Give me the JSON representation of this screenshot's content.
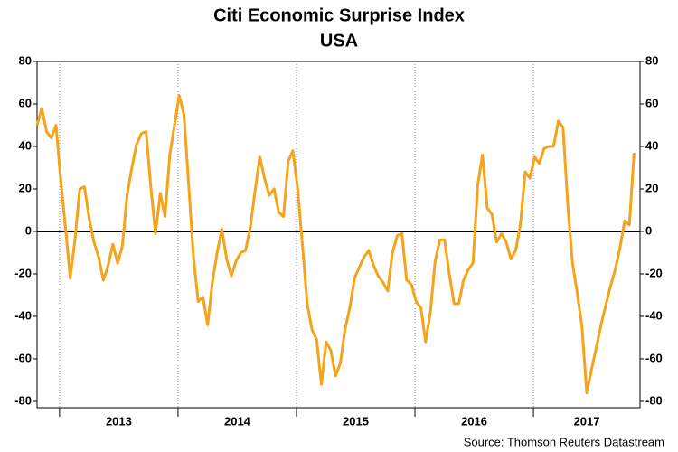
{
  "chart_data": {
    "type": "line",
    "title": "Citi Economic Surprise Index",
    "subtitle": "USA",
    "source": "Source: Thomson Reuters Datastream",
    "x": [
      2012.81,
      2012.85,
      2012.89,
      2012.93,
      2012.97,
      2013.01,
      2013.05,
      2013.09,
      2013.13,
      2013.17,
      2013.21,
      2013.25,
      2013.29,
      2013.33,
      2013.37,
      2013.41,
      2013.45,
      2013.49,
      2013.53,
      2013.57,
      2013.61,
      2013.65,
      2013.69,
      2013.73,
      2013.77,
      2013.81,
      2013.85,
      2013.89,
      2013.93,
      2013.97,
      2014.01,
      2014.05,
      2014.09,
      2014.13,
      2014.17,
      2014.21,
      2014.25,
      2014.29,
      2014.33,
      2014.37,
      2014.41,
      2014.45,
      2014.49,
      2014.53,
      2014.57,
      2014.61,
      2014.65,
      2014.69,
      2014.73,
      2014.77,
      2014.81,
      2014.85,
      2014.89,
      2014.93,
      2014.97,
      2015.01,
      2015.05,
      2015.09,
      2015.13,
      2015.17,
      2015.21,
      2015.25,
      2015.29,
      2015.33,
      2015.37,
      2015.41,
      2015.45,
      2015.49,
      2015.53,
      2015.57,
      2015.61,
      2015.65,
      2015.69,
      2015.73,
      2015.77,
      2015.81,
      2015.85,
      2015.89,
      2015.93,
      2015.97,
      2016.01,
      2016.05,
      2016.09,
      2016.13,
      2016.17,
      2016.21,
      2016.25,
      2016.29,
      2016.33,
      2016.37,
      2016.41,
      2016.45,
      2016.49,
      2016.53,
      2016.57,
      2016.61,
      2016.65,
      2016.69,
      2016.73,
      2016.77,
      2016.81,
      2016.85,
      2016.89,
      2016.93,
      2016.97,
      2017.01,
      2017.05,
      2017.09,
      2017.13,
      2017.17,
      2017.21,
      2017.25,
      2017.29,
      2017.33,
      2017.37,
      2017.41,
      2017.45,
      2017.49,
      2017.53,
      2017.57,
      2017.61,
      2017.65,
      2017.69,
      2017.73,
      2017.77,
      2017.81,
      2017.85
    ],
    "series": [
      {
        "color": "#f5a31a",
        "values": [
          50,
          58,
          47,
          44,
          50,
          24,
          2,
          -22,
          -4,
          20,
          21,
          6,
          -5,
          -12,
          -23,
          -16,
          -6,
          -15,
          -7,
          17,
          30,
          41,
          46,
          47,
          21,
          -1,
          18,
          7,
          36,
          50,
          64,
          55,
          22,
          -12,
          -33,
          -31,
          -44,
          -24,
          -10,
          1,
          -13,
          -21,
          -14,
          -10,
          -9,
          2,
          19,
          35,
          25,
          17,
          20,
          9,
          7,
          33,
          38,
          20,
          -6,
          -34,
          -46,
          -51,
          -72,
          -52,
          -56,
          -68,
          -62,
          -46,
          -36,
          -22,
          -17,
          -12,
          -9,
          -16,
          -21,
          -24,
          -28,
          -10,
          -2,
          -1,
          -23,
          -25,
          -33,
          -36,
          -52,
          -38,
          -14,
          -4,
          -4,
          -20,
          -34,
          -34,
          -23,
          -18,
          -15,
          22,
          36,
          11,
          8,
          -5,
          -1,
          -5,
          -13,
          -9,
          3,
          28,
          25,
          35,
          32,
          39,
          40,
          40,
          52,
          49,
          12,
          -15,
          -29,
          -45,
          -76,
          -65,
          -55,
          -44,
          -35,
          -26,
          -18,
          -8,
          5,
          3,
          37
        ]
      }
    ],
    "xlim": [
      2012.81,
      2017.9
    ],
    "xticks": [
      2013,
      2014,
      2015,
      2016,
      2017
    ],
    "ylim": [
      -83,
      80
    ],
    "yticks": [
      -80,
      -60,
      -40,
      -20,
      0,
      20,
      40,
      60,
      80
    ],
    "grid": true
  }
}
